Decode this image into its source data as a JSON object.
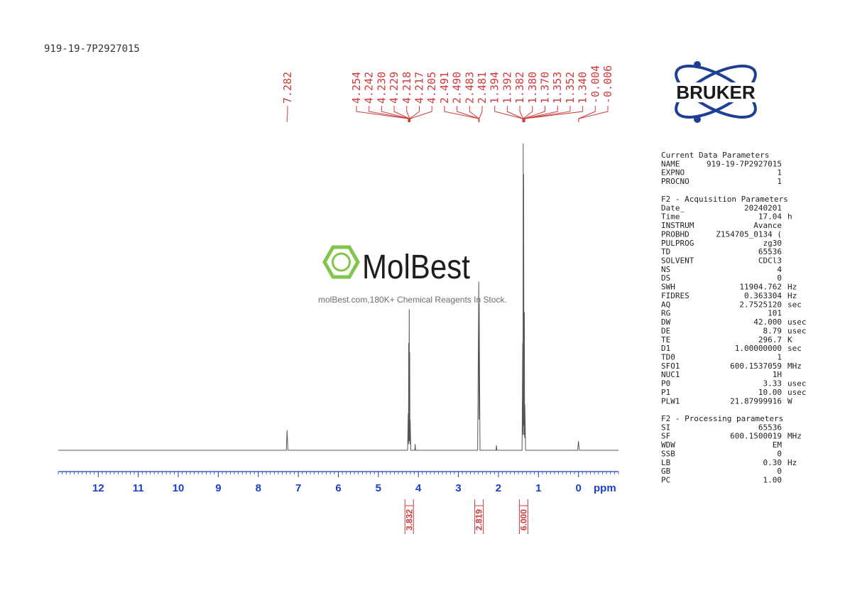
{
  "sample_id": "919-19-7P2927015",
  "watermark": {
    "brand": "MolBest",
    "tagline": "molBest.com,180K+ Chemical Reagents In Stock."
  },
  "logo": "BRUKER",
  "chart_data": {
    "type": "line",
    "x_label": "ppm",
    "xlim": [
      13,
      -1
    ],
    "xticks": [
      12,
      11,
      10,
      9,
      8,
      7,
      6,
      5,
      4,
      3,
      2,
      1,
      0
    ],
    "ylim": [
      0,
      100
    ],
    "color": "#555555",
    "x": [
      13,
      7.3,
      7.282,
      7.26,
      4.27,
      4.254,
      4.248,
      4.242,
      4.236,
      4.229,
      4.223,
      4.217,
      4.211,
      4.205,
      4.19,
      4.09,
      4.08,
      4.07,
      2.52,
      2.491,
      2.486,
      2.481,
      2.46,
      2.06,
      2.05,
      2.04,
      1.41,
      1.393,
      1.387,
      1.381,
      1.376,
      1.37,
      1.36,
      1.352,
      1.346,
      1.34,
      1.32,
      0.02,
      0,
      -0.02,
      -1
    ],
    "values": [
      0,
      0,
      6.5,
      0,
      0,
      12,
      2,
      35,
      3,
      46,
      3,
      32,
      2,
      10,
      0,
      0,
      2,
      0,
      0,
      55,
      10,
      48,
      0,
      0,
      1.6,
      0,
      0,
      35,
      5,
      100,
      8,
      90,
      5,
      45,
      4,
      15,
      0,
      0,
      3,
      0,
      0
    ],
    "peak_labels": [
      7.282,
      4.254,
      4.242,
      {
        "value": 4.23,
        "label": "4.230"
      },
      4.229,
      4.218,
      4.217,
      4.205,
      2.491,
      {
        "value": 2.49,
        "label": "2.490"
      },
      2.483,
      2.481,
      1.394,
      1.392,
      1.382,
      {
        "value": 1.38,
        "label": "1.380"
      },
      {
        "value": 1.37,
        "label": "1.370"
      },
      1.353,
      1.352,
      {
        "value": 1.34,
        "label": "1.340"
      },
      -0.004,
      -0.006
    ],
    "integrals": {
      "x": [
        4.23,
        2.485,
        1.37
      ],
      "values": [
        3.832,
        2.819,
        6
      ],
      "value_labels": [
        "3.832",
        "2.819",
        "6.000"
      ]
    }
  },
  "parameters": [
    {
      "title": "Current Data Parameters",
      "rows": [
        [
          "NAME",
          "919-19-7P2927015"
        ],
        [
          "EXPNO",
          "1"
        ],
        [
          "PROCNO",
          "1"
        ]
      ]
    },
    {
      "title": "F2 - Acquisition Parameters",
      "rows": [
        [
          "Date_",
          "20240201"
        ],
        [
          "Time",
          "17.04",
          "h"
        ],
        [
          "INSTRUM",
          "Avance"
        ],
        [
          "PROBHD",
          "Z154705_0134 ("
        ],
        [
          "PULPROG",
          "zg30"
        ],
        [
          "TD",
          "65536"
        ],
        [
          "SOLVENT",
          "CDCl3"
        ],
        [
          "NS",
          "4"
        ],
        [
          "DS",
          "0"
        ],
        [
          "SWH",
          "11904.762",
          "Hz"
        ],
        [
          "FIDRES",
          "0.363304",
          "Hz"
        ],
        [
          "AQ",
          "2.7525120",
          "sec"
        ],
        [
          "RG",
          "101"
        ],
        [
          "DW",
          "42.000",
          "usec"
        ],
        [
          "DE",
          "8.79",
          "usec"
        ],
        [
          "TE",
          "296.7",
          "K"
        ],
        [
          "D1",
          "1.00000000",
          "sec"
        ],
        [
          "TD0",
          "1"
        ],
        [
          "SFO1",
          "600.1537059",
          "MHz"
        ],
        [
          "NUC1",
          "1H"
        ],
        [
          "P0",
          "3.33",
          "usec"
        ],
        [
          "P1",
          "10.00",
          "usec"
        ],
        [
          "PLW1",
          "21.87999916",
          "W"
        ]
      ]
    },
    {
      "title": "F2 - Processing parameters",
      "rows": [
        [
          "SI",
          "65536"
        ],
        [
          "SF",
          "600.1500019",
          "MHz"
        ],
        [
          "WDW",
          "EM"
        ],
        [
          "SSB",
          "0"
        ],
        [
          "LB",
          "0.30",
          "Hz"
        ],
        [
          "GB",
          "0"
        ],
        [
          "PC",
          "1.00"
        ]
      ]
    }
  ]
}
